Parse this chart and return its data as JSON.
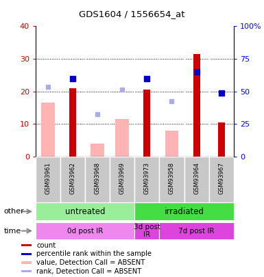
{
  "title": "GDS1604 / 1556654_at",
  "samples": [
    "GSM93961",
    "GSM93962",
    "GSM93968",
    "GSM93969",
    "GSM93973",
    "GSM93958",
    "GSM93964",
    "GSM93967"
  ],
  "count_values": [
    0,
    21,
    0,
    0,
    20.5,
    0,
    31.5,
    10.5
  ],
  "pink_bar_values": [
    16.5,
    0,
    4,
    11.5,
    0,
    8,
    0,
    0
  ],
  "blue_square_values": [
    null,
    24,
    null,
    null,
    24,
    null,
    26,
    19.5
  ],
  "blue_sq_absent_values": [
    21.5,
    null,
    13,
    20.5,
    null,
    17,
    null,
    null
  ],
  "count_color": "#cc0000",
  "pink_bar_color": "#ffb3b3",
  "blue_sq_color": "#0000cc",
  "light_blue_sq_color": "#aaaaee",
  "ylim_left": [
    0,
    40
  ],
  "ylim_right": [
    0,
    100
  ],
  "yticks_left": [
    0,
    10,
    20,
    30,
    40
  ],
  "ytick_labels_left": [
    "0",
    "10",
    "20",
    "30",
    "40"
  ],
  "ytick_labels_right": [
    "0",
    "25",
    "50",
    "75",
    "100%"
  ],
  "groups_other": [
    {
      "label": "untreated",
      "start": 0,
      "end": 4,
      "color": "#99ee99"
    },
    {
      "label": "irradiated",
      "start": 4,
      "end": 8,
      "color": "#44dd44"
    }
  ],
  "groups_time": [
    {
      "label": "0d post IR",
      "start": 0,
      "end": 4,
      "color": "#ee88ee"
    },
    {
      "label": "3d post\nIR",
      "start": 4,
      "end": 5,
      "color": "#dd44dd"
    },
    {
      "label": "7d post IR",
      "start": 5,
      "end": 8,
      "color": "#dd44dd"
    }
  ],
  "legend_items": [
    {
      "color": "#cc0000",
      "label": "count"
    },
    {
      "color": "#0000cc",
      "label": "percentile rank within the sample"
    },
    {
      "color": "#ffb3b3",
      "label": "value, Detection Call = ABSENT"
    },
    {
      "color": "#aaaaee",
      "label": "rank, Detection Call = ABSENT"
    }
  ]
}
